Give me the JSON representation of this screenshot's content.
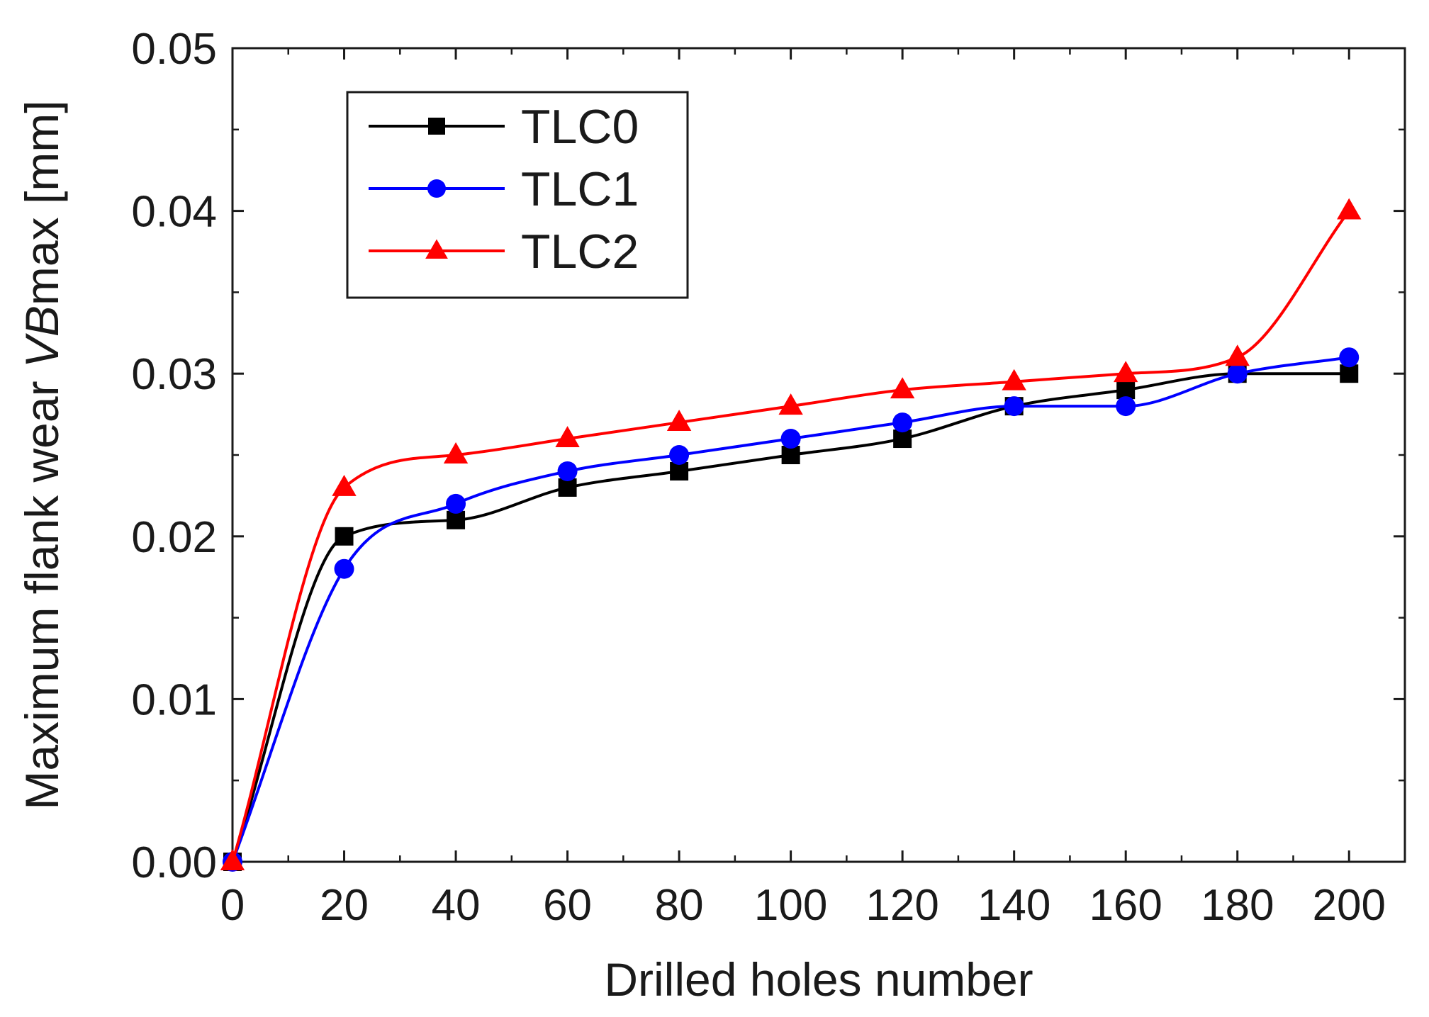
{
  "chart_data": {
    "type": "line",
    "title": "",
    "xlabel": "Drilled holes number",
    "ylabel": {
      "prefix": "Maximum flank wear ",
      "italic": "VB",
      "suffix": "max [mm]"
    },
    "xlim": [
      0,
      210
    ],
    "ylim": [
      0,
      0.05
    ],
    "x_ticks": [
      0,
      20,
      40,
      60,
      80,
      100,
      120,
      140,
      160,
      180,
      200
    ],
    "x_tick_labels": [
      "0",
      "20",
      "40",
      "60",
      "80",
      "100",
      "120",
      "140",
      "160",
      "180",
      "200"
    ],
    "y_ticks": [
      0,
      0.01,
      0.02,
      0.03,
      0.04,
      0.05
    ],
    "y_tick_labels": [
      "0.00",
      "0.01",
      "0.02",
      "0.03",
      "0.04",
      "0.05"
    ],
    "grid": false,
    "legend_position": "top-left",
    "x": [
      0,
      20,
      40,
      60,
      80,
      100,
      120,
      140,
      160,
      180,
      200
    ],
    "series": [
      {
        "name": "TLC0",
        "color": "#000000",
        "marker": "square",
        "values": [
          0,
          0.02,
          0.021,
          0.023,
          0.024,
          0.025,
          0.026,
          0.028,
          0.029,
          0.03,
          0.03
        ]
      },
      {
        "name": "TLC1",
        "color": "#0000ff",
        "marker": "circle",
        "values": [
          0,
          0.018,
          0.022,
          0.024,
          0.025,
          0.026,
          0.027,
          0.028,
          0.028,
          0.03,
          0.031
        ]
      },
      {
        "name": "TLC2",
        "color": "#ff0000",
        "marker": "triangle",
        "values": [
          0,
          0.023,
          0.025,
          0.026,
          0.027,
          0.028,
          0.029,
          0.0295,
          0.03,
          0.031,
          0.04
        ]
      }
    ]
  }
}
